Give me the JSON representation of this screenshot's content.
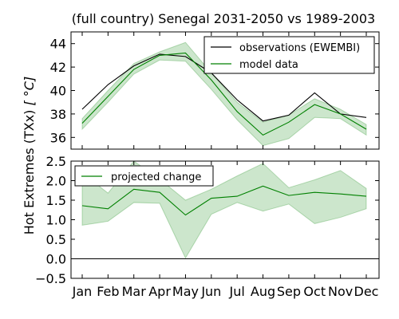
{
  "chart_data": {
    "title": "(full country) Senegal 2031-2050 vs 1989-2003",
    "ylabel": "Hot Extremes (TXx) [$^\\circ C$]",
    "ylabel_text": "Hot Extremes (TXx)",
    "ylabel_unit": "[ °C]",
    "categories": [
      "Jan",
      "Feb",
      "Mar",
      "Apr",
      "May",
      "Jun",
      "Jul",
      "Aug",
      "Sep",
      "Oct",
      "Nov",
      "Dec"
    ],
    "panels": [
      {
        "type": "line",
        "ylim": [
          35,
          45
        ],
        "yticks": [
          36,
          38,
          40,
          42,
          44
        ],
        "legend_position": "top-right",
        "series": [
          {
            "name": "observations (EWEMBI)",
            "color": "#000000",
            "values": [
              38.4,
              40.5,
              42.1,
              43.1,
              42.9,
              41.5,
              39.2,
              37.4,
              37.9,
              39.8,
              38.0,
              37.7
            ]
          },
          {
            "name": "model data",
            "color": "#008000",
            "values": [
              37.2,
              39.5,
              41.8,
              43.0,
              43.2,
              40.9,
              38.2,
              36.2,
              37.3,
              38.8,
              38.0,
              36.7
            ],
            "band_lower": [
              36.7,
              39.0,
              41.4,
              42.6,
              42.5,
              40.1,
              37.5,
              35.3,
              35.9,
              37.7,
              37.6,
              36.2
            ],
            "band_upper": [
              37.6,
              40.0,
              42.3,
              43.3,
              44.1,
              41.5,
              39.0,
              37.3,
              37.9,
              39.3,
              38.4,
              37.1
            ],
            "band_color": "#008000"
          }
        ]
      },
      {
        "type": "line",
        "ylim": [
          -0.5,
          2.5
        ],
        "yticks": [
          -0.5,
          0.0,
          0.5,
          1.0,
          1.5,
          2.0,
          2.5
        ],
        "ytick_labels": [
          "−0.5",
          "0.0",
          "0.5",
          "1.0",
          "1.5",
          "2.0",
          "2.5"
        ],
        "reference_line": 0,
        "legend_position": "top-left",
        "series": [
          {
            "name": "projected change",
            "color": "#008000",
            "values": [
              1.36,
              1.28,
              1.78,
              1.7,
              1.12,
              1.55,
              1.6,
              1.86,
              1.62,
              1.7,
              1.66,
              1.6
            ],
            "band_lower": [
              0.86,
              0.96,
              1.44,
              1.42,
              0.02,
              1.14,
              1.44,
              1.22,
              1.4,
              0.9,
              1.06,
              1.28
            ],
            "band_upper": [
              2.2,
              1.68,
              2.5,
              2.04,
              1.5,
              1.78,
              2.12,
              2.44,
              1.82,
              2.02,
              2.26,
              1.8
            ],
            "band_color": "#008000"
          }
        ]
      }
    ]
  }
}
